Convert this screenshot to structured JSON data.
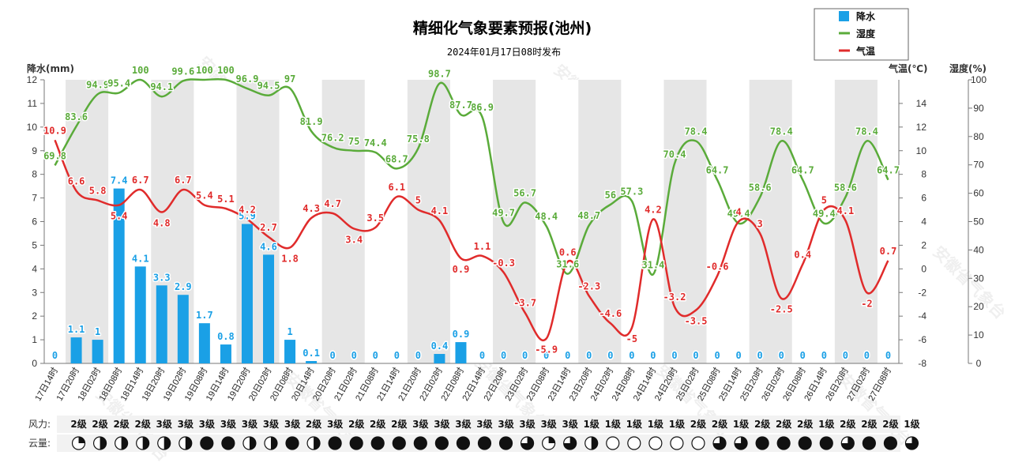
{
  "chart_data": {
    "type": "combo",
    "title": "精细化气象要素预报(池州)",
    "subtitle": "2024年01月17日08时发布",
    "watermark": "安徽省气象台",
    "axes": {
      "precip": {
        "label": "降水(mm)",
        "ylim": [
          0,
          12
        ],
        "ticks": [
          0,
          1,
          2,
          3,
          4,
          5,
          6,
          7,
          8,
          9,
          10,
          11,
          12
        ]
      },
      "temp": {
        "label": "气温(℃)",
        "ylim": [
          -8,
          16
        ],
        "ticks": [
          -8,
          -6,
          -4,
          -2,
          0,
          2,
          4,
          6,
          8,
          10,
          12,
          14
        ]
      },
      "humidity": {
        "label": "湿度(%)",
        "ylim": [
          0,
          100
        ],
        "ticks": [
          0,
          10,
          20,
          30,
          40,
          50,
          60,
          70,
          80,
          90,
          100
        ]
      }
    },
    "categories": [
      "17日14时",
      "17日20时",
      "18日02时",
      "18日08时",
      "18日14时",
      "18日20时",
      "19日02时",
      "19日08时",
      "19日14时",
      "19日20时",
      "20日02时",
      "20日08时",
      "20日14时",
      "20日20时",
      "21日02时",
      "21日08时",
      "21日14时",
      "21日20时",
      "22日02时",
      "22日08时",
      "22日14时",
      "22日20时",
      "23日02时",
      "23日08时",
      "23日14时",
      "23日20时",
      "24日02时",
      "24日08时",
      "24日14时",
      "24日20时",
      "25日02时",
      "25日08时",
      "25日14时",
      "25日20时",
      "26日02时",
      "26日08时",
      "26日14时",
      "26日20时",
      "27日02时",
      "27日08时"
    ],
    "legend": {
      "placement": "top-right",
      "entries": [
        "降水",
        "湿度",
        "气温"
      ]
    },
    "colors": {
      "precip": "#1aa0e6",
      "humidity": "#5aab3a",
      "temp": "#e02b2b",
      "band": "#e6e6e6"
    },
    "series": [
      {
        "name": "降水",
        "type": "bar",
        "values": [
          0,
          1.1,
          1,
          7.4,
          4.1,
          3.3,
          2.9,
          1.7,
          0.8,
          5.9,
          4.6,
          1,
          0.1,
          0,
          0,
          0,
          0,
          0,
          0.4,
          0.9,
          0,
          0,
          0,
          0,
          0,
          0,
          0,
          0,
          0,
          0,
          0,
          0,
          0,
          0,
          0,
          0,
          0,
          0,
          0,
          0
        ],
        "labels": [
          "0",
          "1.1",
          "1",
          "7.4",
          "4.1",
          "3.3",
          "2.9",
          "1.7",
          "0.8",
          "5.9",
          "4.6",
          "1",
          "0.1",
          "0",
          "0",
          "0",
          "0",
          "0",
          "0.4",
          "0.9",
          "0",
          "0",
          "0",
          "0",
          "0",
          "0",
          "0",
          "0",
          "0",
          "0",
          "0",
          "0",
          "0",
          "0",
          "0",
          "0",
          "0",
          "0",
          "0",
          "0"
        ]
      },
      {
        "name": "湿度",
        "type": "line",
        "values": [
          69.8,
          83.6,
          94.9,
          95.4,
          100,
          94.1,
          99.6,
          100,
          100,
          96.9,
          94.5,
          97,
          81.9,
          76.2,
          75,
          74.4,
          68.7,
          75.8,
          98.7,
          87.7,
          86.9,
          49.7,
          56.7,
          48.4,
          31.6,
          48.7,
          56,
          57.3,
          31.4,
          70.4,
          78.4,
          64.7,
          49.4,
          58.6,
          78.4,
          64.7,
          49.4,
          58.6,
          78.4,
          64.7
        ],
        "labels": [
          "69.8",
          "83.6",
          "94.9",
          "95.4",
          "100",
          "94.1",
          "99.6",
          "100",
          "100",
          "96.9",
          "94.5",
          "97",
          "81.9",
          "76.2",
          "75",
          "74.4",
          "68.7",
          "75.8",
          "98.7",
          "87.7",
          "86.9",
          "49.7",
          "56.7",
          "48.4",
          "31.6",
          "48.7",
          "56",
          "57.3",
          "31.4",
          "70.4",
          "78.4",
          "64.7",
          "49.4",
          "58.6",
          "78.4",
          "64.7",
          "49.4",
          "58.6",
          "78.4",
          "64.7"
        ]
      },
      {
        "name": "气温",
        "type": "line",
        "values": [
          10.9,
          6.6,
          5.8,
          5.4,
          6.7,
          4.8,
          6.7,
          5.4,
          5.1,
          4.2,
          2.7,
          1.8,
          4.3,
          4.7,
          3.4,
          3.5,
          6.1,
          5,
          4.1,
          0.9,
          1.1,
          -0.3,
          -3.7,
          -5.9,
          0.6,
          -2.3,
          -4.6,
          -5,
          4.2,
          -3.2,
          -3.5,
          -0.6,
          4,
          3,
          -2.5,
          0.4,
          5,
          4.1,
          -2,
          0.7
        ],
        "labels": [
          "10.9",
          "6.6",
          "5.8",
          "5.4",
          "6.7",
          "4.8",
          "6.7",
          "5.4",
          "5.1",
          "4.2",
          "2.7",
          "1.8",
          "4.3",
          "4.7",
          "3.4",
          "3.5",
          "6.1",
          "5",
          "4.1",
          "0.9",
          "1.1",
          "-0.3",
          "-3.7",
          "-5.9",
          "0.6",
          "-2.3",
          "-4.6",
          "-5",
          "4.2",
          "-3.2",
          "-3.5",
          "-0.6",
          "4",
          "3",
          "-2.5",
          "0.4",
          "5",
          "4.1",
          "-2",
          "0.7"
        ]
      }
    ],
    "wind": {
      "label": "风力:",
      "values": [
        "2级",
        "2级",
        "2级",
        "2级",
        "3级",
        "3级",
        "3级",
        "3级",
        "3级",
        "3级",
        "3级",
        "2级",
        "3级",
        "2级",
        "2级",
        "2级",
        "3级",
        "3级",
        "3级",
        "3级",
        "3级",
        "3级",
        "3级",
        "3级",
        "1级",
        "1级",
        "1级",
        "1级",
        "1级",
        "2级",
        "2级",
        "1级",
        "2级",
        "2级",
        "2级",
        "1级",
        "2级",
        "2级",
        "2级",
        "1级"
      ]
    },
    "cloud": {
      "label": "云量:",
      "values": [
        0.25,
        0.5,
        0.5,
        0.5,
        0.5,
        0.5,
        1,
        1,
        0.5,
        0.5,
        1,
        0.5,
        1,
        1,
        1,
        1,
        1,
        1,
        1,
        1,
        1,
        0.75,
        0.25,
        0.75,
        0.5,
        0,
        0,
        0,
        0,
        0,
        0.75,
        0.75,
        1,
        1,
        1,
        1,
        0.75,
        1,
        1,
        0.75
      ]
    }
  }
}
